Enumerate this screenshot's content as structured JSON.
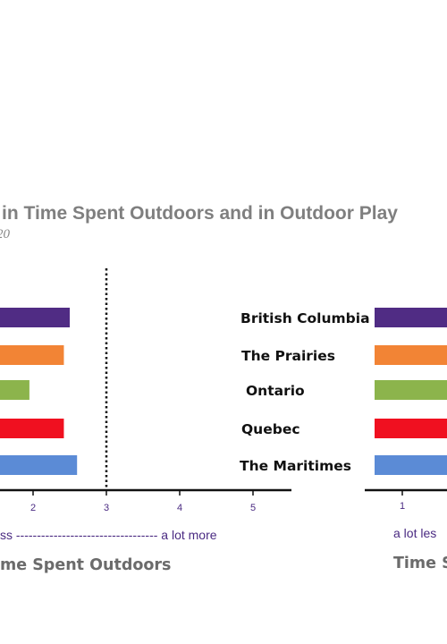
{
  "chart_data": {
    "type": "bar",
    "orientation": "horizontal",
    "title": "in Time Spent Outdoors and in Outdoor Play",
    "subtitle": "20",
    "categories": [
      "British Columbia",
      "The Prairies",
      "Ontario",
      "Quebec",
      "The Maritimes"
    ],
    "colors": [
      "#502c84",
      "#f28435",
      "#8cb44c",
      "#f01020",
      "#5b8bd6"
    ],
    "grid": false,
    "panels": [
      {
        "name": "time_spent_outdoors",
        "axis_title": "me Spent Outdoors",
        "scale_label": "ss ---------------------------------- a lot more",
        "xlim": [
          1,
          5.5
        ],
        "ticks": [
          "2",
          "3",
          "4",
          "5"
        ],
        "reference_line": 3,
        "values": [
          2.5,
          2.42,
          1.95,
          2.42,
          2.6
        ]
      },
      {
        "name": "outdoor_play",
        "axis_title": "Time S",
        "scale_label": "a lot les",
        "xlim": [
          1,
          5.5
        ],
        "ticks": [
          "1"
        ],
        "values": [
          2.5,
          2.42,
          1.95,
          2.42,
          2.6
        ]
      }
    ]
  }
}
